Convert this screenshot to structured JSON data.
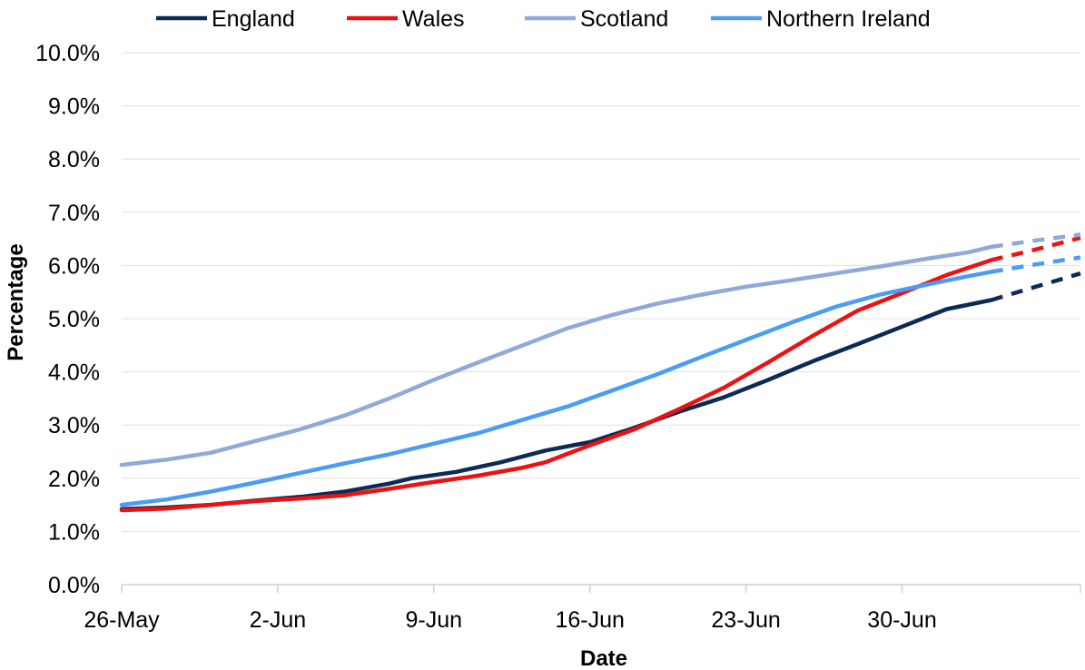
{
  "chart_data": {
    "type": "line",
    "title": "",
    "xlabel": "Date",
    "ylabel": "Percentage",
    "x_tick_labels": [
      "26-May",
      "2-Jun",
      "9-Jun",
      "16-Jun",
      "23-Jun",
      "30-Jun"
    ],
    "x_tick_days": [
      0,
      7,
      14,
      21,
      28,
      35
    ],
    "xlim_days": [
      0,
      43
    ],
    "y_tick_labels": [
      "0.0%",
      "1.0%",
      "2.0%",
      "3.0%",
      "4.0%",
      "5.0%",
      "6.0%",
      "7.0%",
      "8.0%",
      "9.0%",
      "10.0%"
    ],
    "ylim": [
      0,
      10
    ],
    "grid": "horizontal",
    "legend_position": "top",
    "projection_style": "dashed",
    "series": [
      {
        "name": "England",
        "color": "#0b2a56",
        "observed": [
          [
            0,
            1.42
          ],
          [
            2,
            1.45
          ],
          [
            4,
            1.5
          ],
          [
            6,
            1.58
          ],
          [
            8,
            1.65
          ],
          [
            10,
            1.75
          ],
          [
            12,
            1.9
          ],
          [
            13,
            2.0
          ],
          [
            15,
            2.12
          ],
          [
            17,
            2.3
          ],
          [
            19,
            2.52
          ],
          [
            21,
            2.68
          ],
          [
            23,
            2.95
          ],
          [
            25,
            3.25
          ],
          [
            27,
            3.52
          ],
          [
            29,
            3.85
          ],
          [
            31,
            4.2
          ],
          [
            33,
            4.52
          ],
          [
            35,
            4.85
          ],
          [
            37,
            5.18
          ],
          [
            39,
            5.35
          ]
        ],
        "projected": [
          [
            39,
            5.35
          ],
          [
            41,
            5.6
          ],
          [
            43,
            5.85
          ]
        ]
      },
      {
        "name": "Wales",
        "color": "#ee1111",
        "observed": [
          [
            0,
            1.4
          ],
          [
            2,
            1.43
          ],
          [
            4,
            1.5
          ],
          [
            6,
            1.57
          ],
          [
            8,
            1.62
          ],
          [
            10,
            1.68
          ],
          [
            12,
            1.8
          ],
          [
            14,
            1.93
          ],
          [
            16,
            2.05
          ],
          [
            18,
            2.2
          ],
          [
            19,
            2.3
          ],
          [
            21,
            2.62
          ],
          [
            23,
            2.92
          ],
          [
            25,
            3.3
          ],
          [
            27,
            3.7
          ],
          [
            29,
            4.18
          ],
          [
            31,
            4.68
          ],
          [
            33,
            5.15
          ],
          [
            35,
            5.48
          ],
          [
            37,
            5.82
          ],
          [
            39,
            6.1
          ]
        ],
        "projected": [
          [
            39,
            6.1
          ],
          [
            41,
            6.3
          ],
          [
            43,
            6.52
          ]
        ]
      },
      {
        "name": "Scotland",
        "color": "#91a9d9",
        "observed": [
          [
            0,
            2.25
          ],
          [
            2,
            2.35
          ],
          [
            4,
            2.48
          ],
          [
            6,
            2.7
          ],
          [
            8,
            2.92
          ],
          [
            10,
            3.18
          ],
          [
            12,
            3.5
          ],
          [
            14,
            3.85
          ],
          [
            16,
            4.18
          ],
          [
            18,
            4.5
          ],
          [
            20,
            4.82
          ],
          [
            22,
            5.07
          ],
          [
            24,
            5.28
          ],
          [
            26,
            5.45
          ],
          [
            28,
            5.6
          ],
          [
            30,
            5.72
          ],
          [
            32,
            5.85
          ],
          [
            34,
            5.98
          ],
          [
            36,
            6.12
          ],
          [
            38,
            6.25
          ],
          [
            39,
            6.35
          ]
        ],
        "projected": [
          [
            39,
            6.35
          ],
          [
            41,
            6.47
          ],
          [
            43,
            6.58
          ]
        ]
      },
      {
        "name": "Northern Ireland",
        "color": "#4b9cf5",
        "observed": [
          [
            0,
            1.5
          ],
          [
            2,
            1.6
          ],
          [
            4,
            1.75
          ],
          [
            6,
            1.92
          ],
          [
            8,
            2.1
          ],
          [
            10,
            2.28
          ],
          [
            12,
            2.45
          ],
          [
            14,
            2.65
          ],
          [
            16,
            2.85
          ],
          [
            18,
            3.1
          ],
          [
            20,
            3.35
          ],
          [
            22,
            3.65
          ],
          [
            24,
            3.95
          ],
          [
            26,
            4.28
          ],
          [
            28,
            4.6
          ],
          [
            30,
            4.92
          ],
          [
            32,
            5.22
          ],
          [
            34,
            5.45
          ],
          [
            36,
            5.63
          ],
          [
            38,
            5.8
          ],
          [
            39,
            5.88
          ]
        ],
        "projected": [
          [
            39,
            5.88
          ],
          [
            41,
            6.02
          ],
          [
            43,
            6.15
          ]
        ]
      }
    ]
  }
}
